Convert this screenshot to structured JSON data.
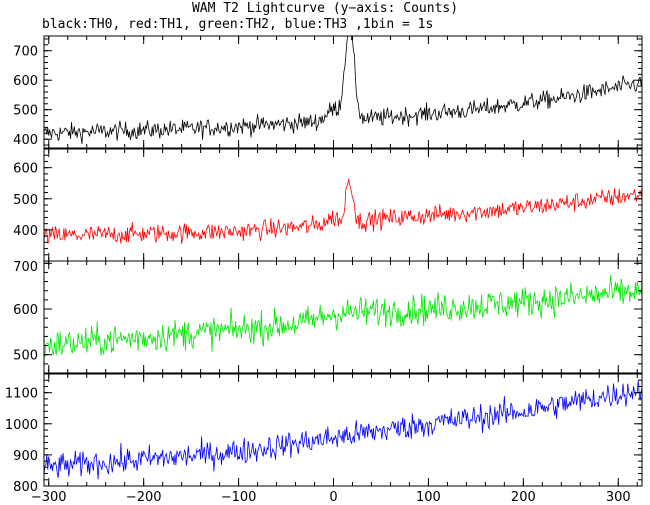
{
  "title": "WAM T2 Lightcurve (y−axis: Counts)",
  "subtitle": "black:TH0, red:TH1, green:TH2, blue:TH3 ,1bin = 1s",
  "chart_data": {
    "type": "line",
    "x_range": [
      -305,
      325
    ],
    "x_ticks": [
      -300,
      -200,
      -100,
      0,
      100,
      200,
      300
    ],
    "panels": [
      {
        "name": "TH0",
        "color": "#000000",
        "ylim": [
          370,
          750
        ],
        "yticks": [
          400,
          500,
          600,
          700
        ],
        "baseline": [
          [
            -305,
            420
          ],
          [
            -150,
            435
          ],
          [
            -10,
            460
          ],
          [
            40,
            470
          ],
          [
            150,
            500
          ],
          [
            240,
            540
          ],
          [
            325,
            590
          ]
        ],
        "noise": 22,
        "peaks": [
          [
            1,
            40,
            8
          ],
          [
            15,
            220,
            4
          ],
          [
            20,
            150,
            4
          ]
        ]
      },
      {
        "name": "TH1",
        "color": "#ff0000",
        "ylim": [
          300,
          660
        ],
        "yticks": [
          400,
          500,
          600
        ],
        "baseline": [
          [
            -305,
            380
          ],
          [
            -100,
            395
          ],
          [
            -10,
            415
          ],
          [
            50,
            435
          ],
          [
            200,
            470
          ],
          [
            325,
            515
          ]
        ],
        "noise": 22,
        "peaks": [
          [
            0,
            20,
            8
          ],
          [
            15,
            140,
            2
          ],
          [
            20,
            100,
            2
          ]
        ]
      },
      {
        "name": "TH2",
        "color": "#00e600",
        "ylim": [
          460,
          705
        ],
        "yticks": [
          500,
          600,
          700
        ],
        "baseline": [
          [
            -305,
            520
          ],
          [
            -100,
            555
          ],
          [
            -30,
            570
          ],
          [
            0,
            590
          ],
          [
            100,
            600
          ],
          [
            200,
            615
          ],
          [
            325,
            640
          ]
        ],
        "noise": 24,
        "peaks": []
      },
      {
        "name": "TH3",
        "color": "#0000ff",
        "ylim": [
          800,
          1160
        ],
        "yticks": [
          800,
          900,
          1000,
          1100
        ],
        "baseline": [
          [
            -305,
            860
          ],
          [
            -200,
            885
          ],
          [
            -100,
            910
          ],
          [
            0,
            955
          ],
          [
            100,
            1000
          ],
          [
            200,
            1040
          ],
          [
            325,
            1110
          ]
        ],
        "noise": 30,
        "peaks": []
      }
    ]
  }
}
